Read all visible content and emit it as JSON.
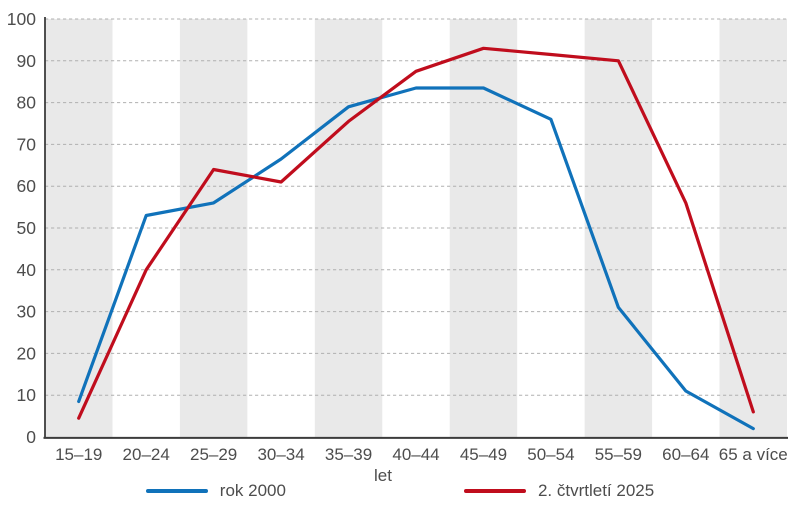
{
  "chart_data": {
    "type": "line",
    "title": "",
    "xlabel": "let",
    "ylabel": "",
    "categories": [
      "15–19",
      "20–24",
      "25–29",
      "30–34",
      "35–39",
      "40–44",
      "45–49",
      "50–54",
      "55–59",
      "60–64",
      "65 a více"
    ],
    "series": [
      {
        "name": "rok 2000",
        "color": "#1072ba",
        "values": [
          8.5,
          53,
          56,
          66.5,
          79,
          83.5,
          83.5,
          76,
          31,
          11,
          2
        ]
      },
      {
        "name": "2. čtvrtletí 2025",
        "color": "#c00d1d",
        "values": [
          4.5,
          40,
          64,
          61,
          75.5,
          87.5,
          93,
          91.5,
          90,
          56,
          6
        ]
      }
    ],
    "ylim": [
      0,
      100
    ],
    "yticks": [
      0,
      10,
      20,
      30,
      40,
      50,
      60,
      70,
      80,
      90,
      100
    ],
    "grid": "horizontal-dashed",
    "legend_position": "bottom",
    "band_pattern": "alternating-columns-starting-gray",
    "colors": {
      "band": "#e9e9e9",
      "grid": "#b0b0b0",
      "axis": "#3c3c3c",
      "text": "#4d4d4d"
    }
  }
}
